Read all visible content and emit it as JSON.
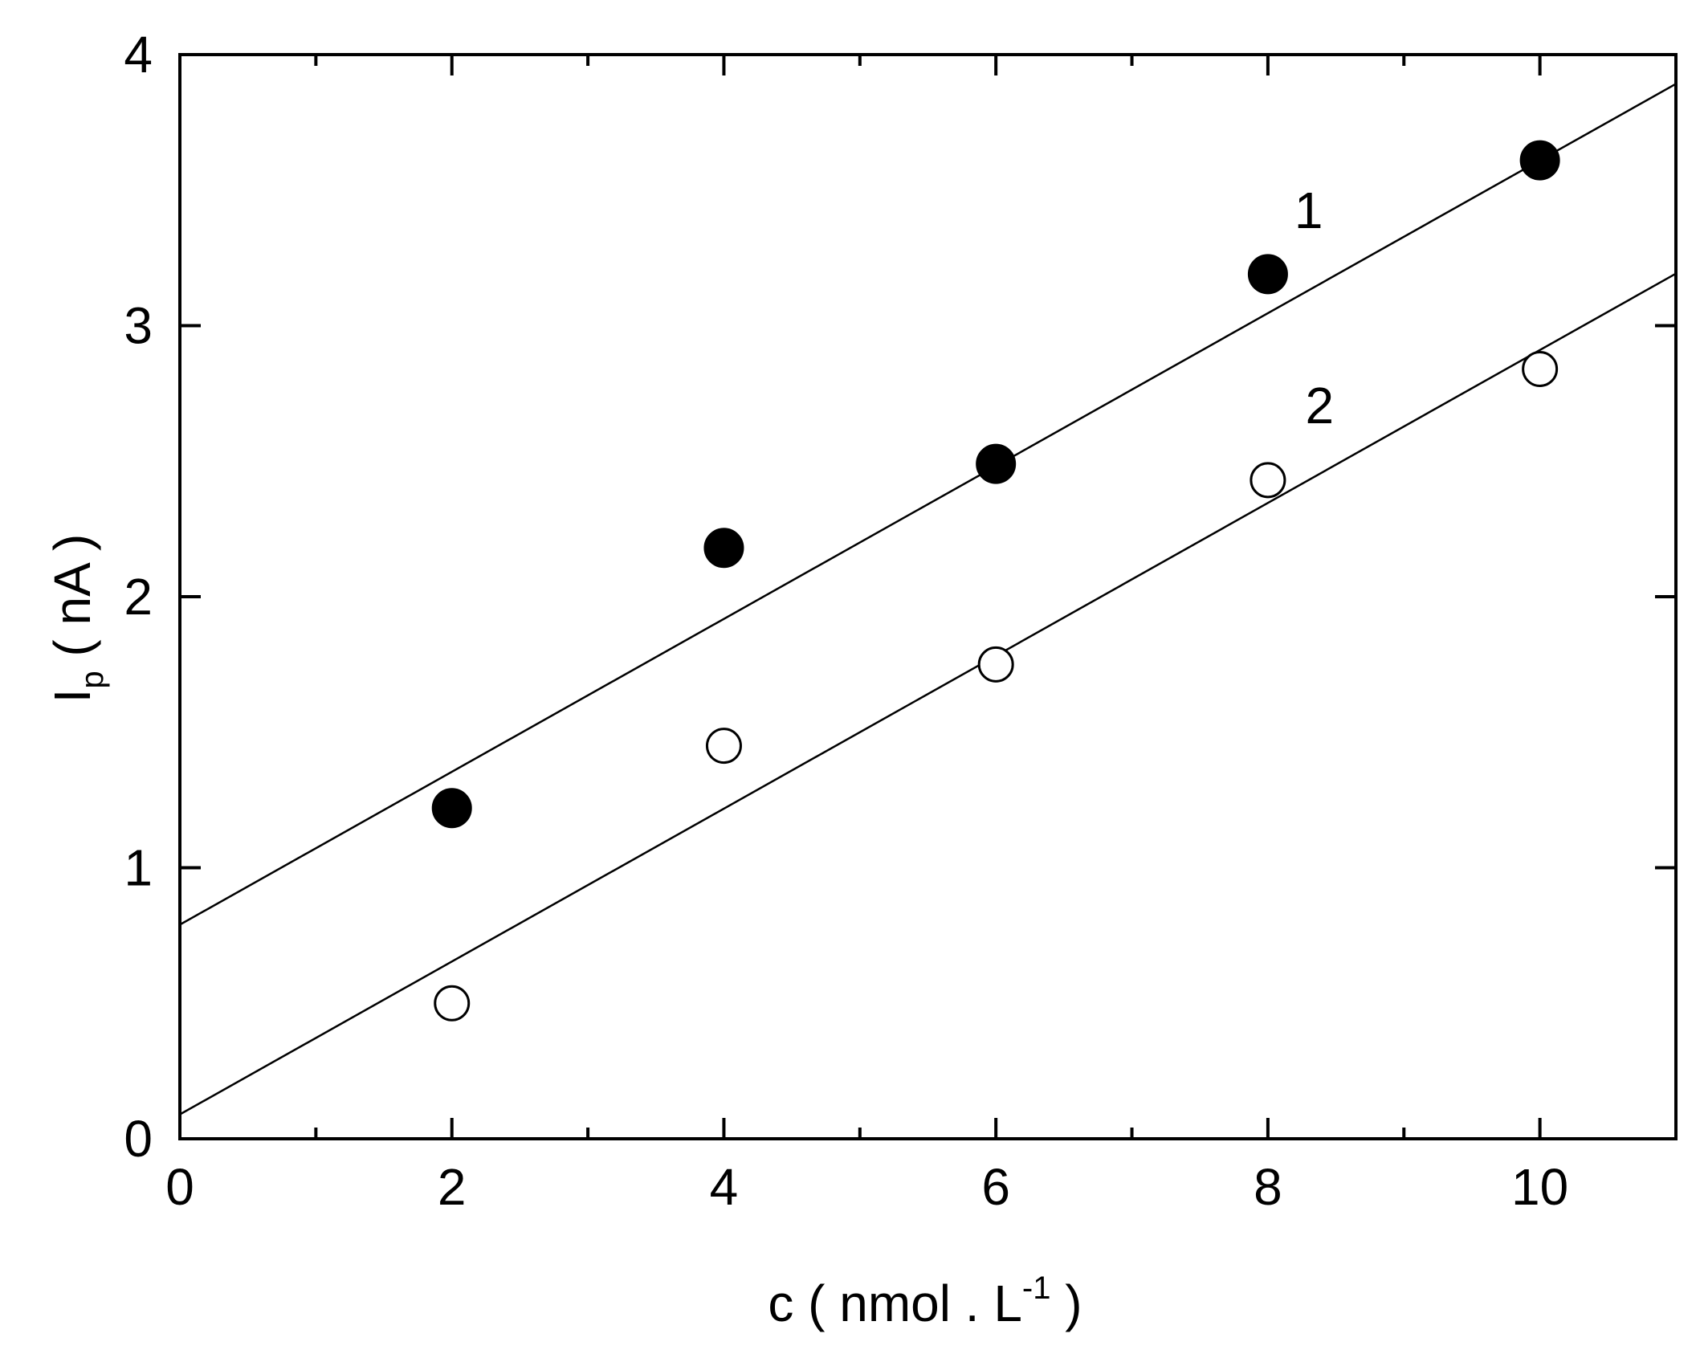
{
  "chart_data": {
    "type": "scatter",
    "title": "",
    "xlabel": {
      "base": "c ( nmol . L",
      "sup": "-1",
      "tail": " )"
    },
    "ylabel": {
      "base": "I",
      "sub": "p",
      "tail": " ( nA )"
    },
    "xlim": [
      0,
      11
    ],
    "ylim": [
      0,
      4
    ],
    "xticks": [
      0,
      2,
      4,
      6,
      8,
      10
    ],
    "yticks": [
      0,
      1,
      2,
      3,
      4
    ],
    "x_minor_ticks": [
      1,
      3,
      5,
      7,
      9
    ],
    "grid": false,
    "series": [
      {
        "name": "1",
        "marker": "filled-circle",
        "color": "#000000",
        "x": [
          2,
          4,
          6,
          8,
          10
        ],
        "y": [
          1.22,
          2.18,
          2.49,
          3.19,
          3.61
        ],
        "fit": {
          "intercept": 0.79,
          "slope": 0.282
        },
        "label_at": [
          8.3,
          3.36
        ]
      },
      {
        "name": "2",
        "marker": "open-circle",
        "color": "#000000",
        "x": [
          2,
          4,
          6,
          8,
          10
        ],
        "y": [
          0.5,
          1.45,
          1.75,
          2.43,
          2.84
        ],
        "fit": {
          "intercept": 0.09,
          "slope": 0.282
        },
        "label_at": [
          8.38,
          2.64
        ]
      }
    ]
  }
}
